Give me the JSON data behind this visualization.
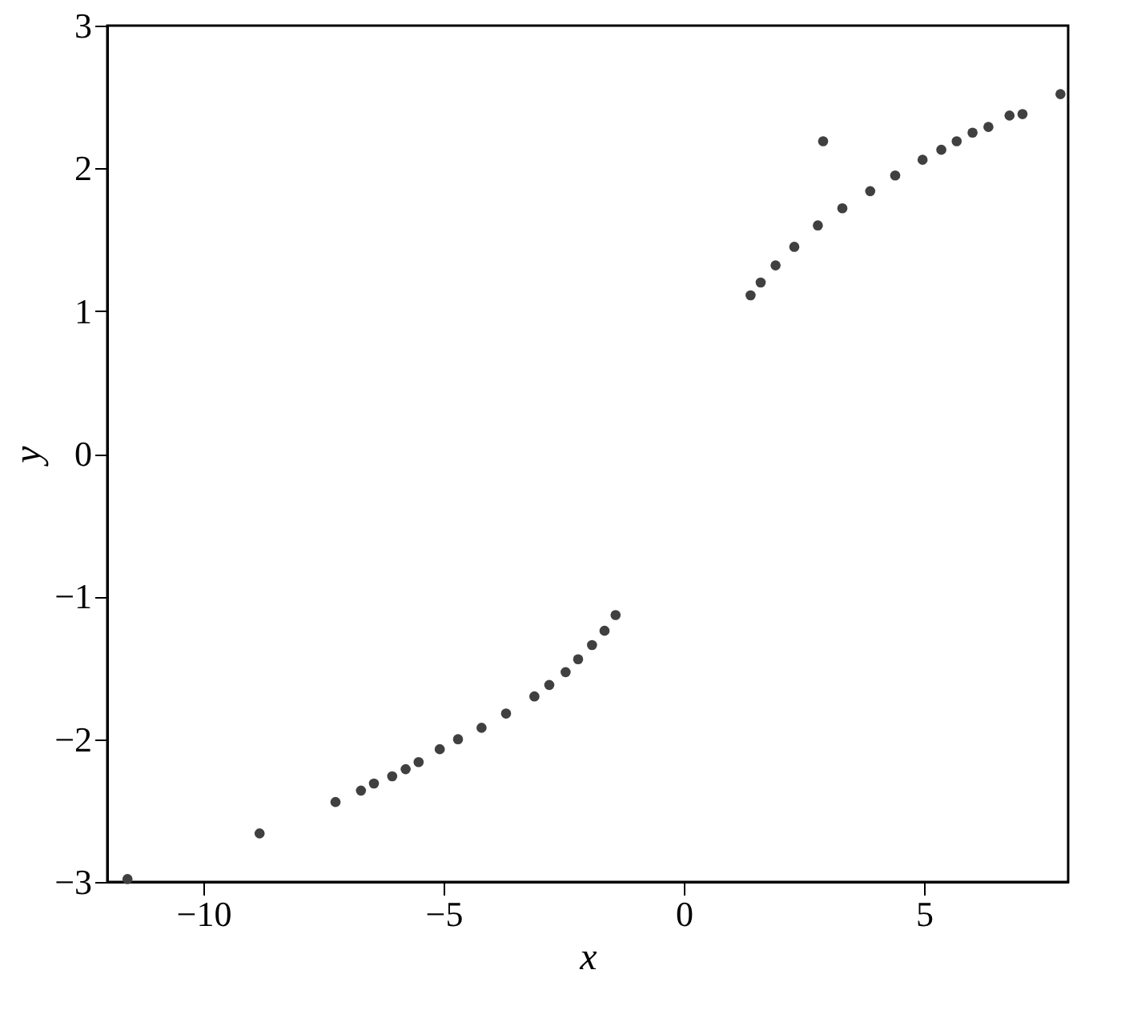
{
  "chart_data": {
    "type": "scatter",
    "xlabel": "x",
    "ylabel": "y",
    "xlim": [
      -12,
      8
    ],
    "ylim": [
      -3,
      3
    ],
    "xticks": [
      -10,
      -5,
      0,
      5
    ],
    "yticks": [
      -3,
      -2,
      -1,
      0,
      1,
      2,
      3
    ],
    "grid": false,
    "legend": false,
    "marker": "circle",
    "series": [
      {
        "color": "#404040",
        "x": [
          -11.58,
          -8.83,
          -7.25,
          -6.72,
          -6.45,
          -6.07,
          -5.79,
          -5.52,
          -5.08,
          -4.7,
          -4.21,
          -3.7,
          -3.11,
          -2.8,
          -2.46,
          -2.2,
          -1.91,
          -1.65,
          -1.42,
          1.39,
          1.6,
          1.91,
          2.3,
          2.79,
          3.3,
          3.88,
          4.4,
          4.97,
          5.36,
          5.68,
          6.01,
          6.34,
          6.78,
          7.05,
          7.84,
          2.9
        ],
        "values": [
          -2.98,
          -2.66,
          -2.44,
          -2.36,
          -2.31,
          -2.26,
          -2.21,
          -2.16,
          -2.07,
          -2.0,
          -1.92,
          -1.82,
          -1.7,
          -1.62,
          -1.53,
          -1.44,
          -1.34,
          -1.24,
          -1.13,
          1.11,
          1.2,
          1.32,
          1.45,
          1.6,
          1.72,
          1.84,
          1.95,
          2.06,
          2.13,
          2.19,
          2.25,
          2.29,
          2.37,
          2.38,
          2.52,
          2.19
        ]
      }
    ]
  }
}
